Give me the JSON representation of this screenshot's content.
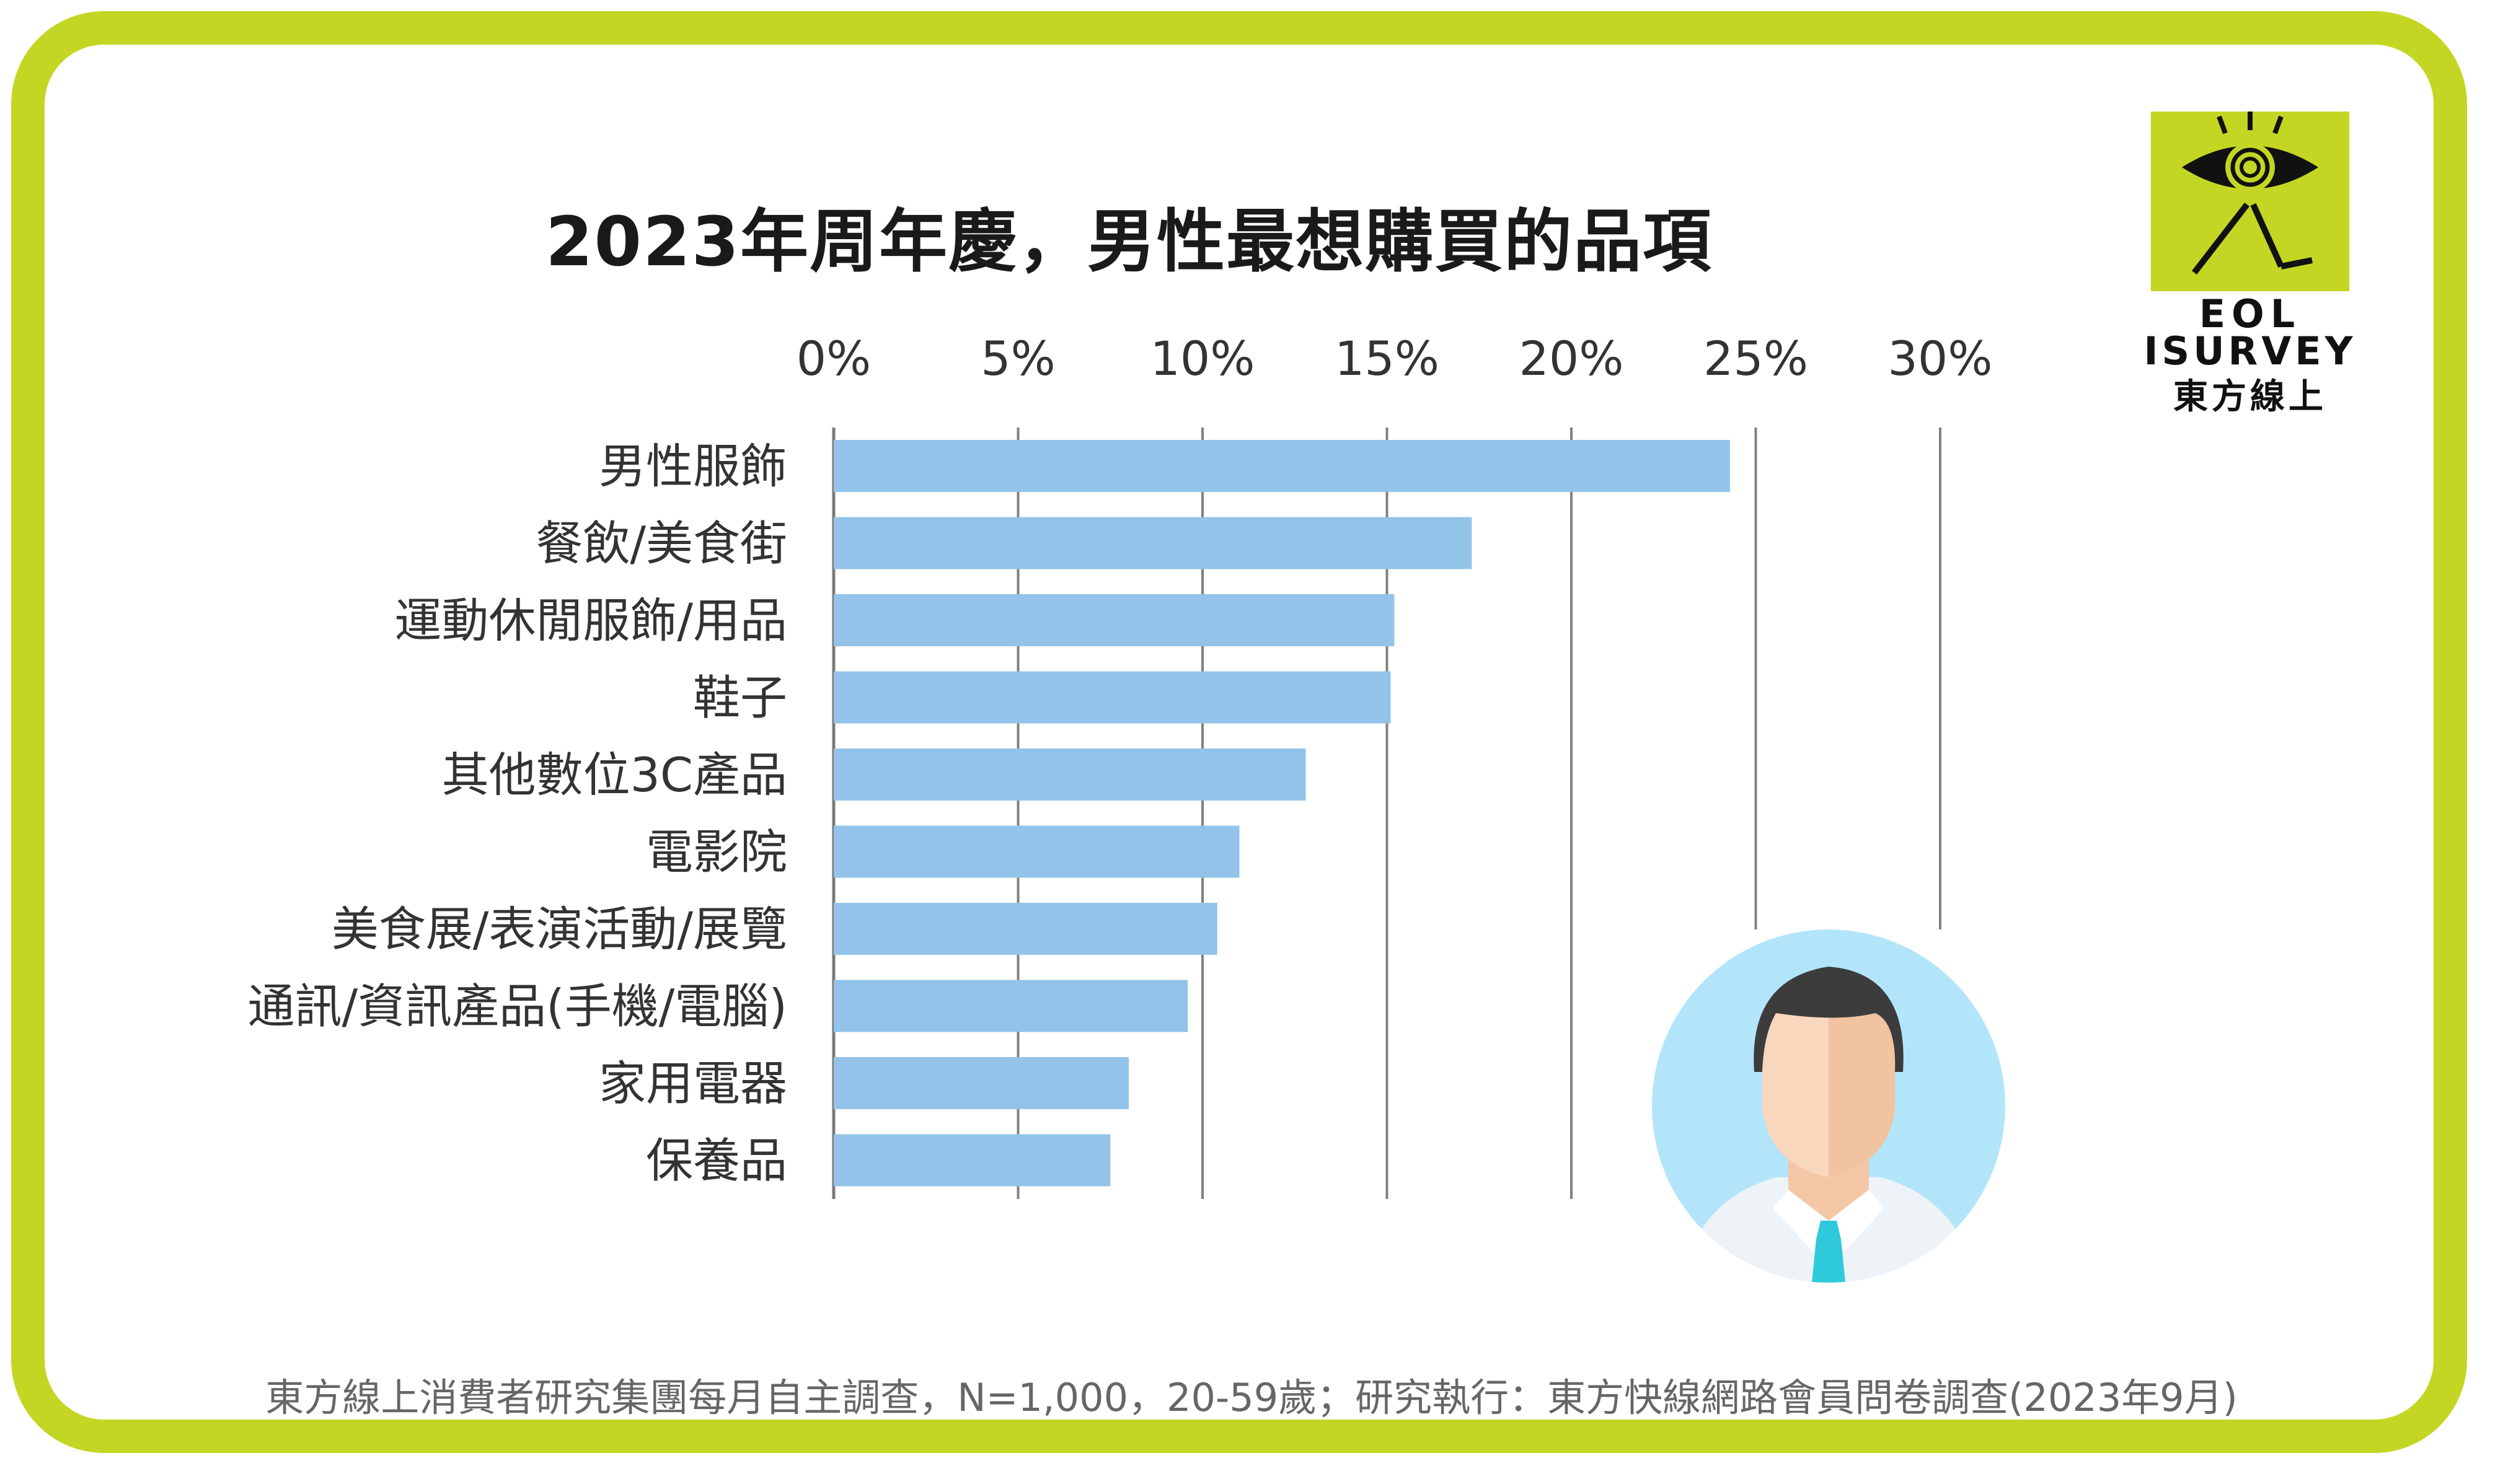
{
  "title": "2023年周年慶，男性最想購買的品項",
  "logo": {
    "line1": "EOL",
    "line2": "ISURVEY",
    "line3": "東方線上"
  },
  "footnote": "東方線上消費者研究集團每月自主調查，N=1,000，20-59歲；研究執行：東方快線網路會員問卷調查(2023年9月)",
  "colors": {
    "bar": "#93c3e8",
    "frame": "#c3d623",
    "grid": "#808080",
    "avatar_bg": "#b3e5fa",
    "tie": "#2ec9da"
  },
  "chart_data": {
    "type": "bar",
    "orientation": "horizontal",
    "title": "2023年周年慶，男性最想購買的品項",
    "categories": [
      "男性服飾",
      "餐飲/美食街",
      "運動休閒服飾/用品",
      "鞋子",
      "其他數位3C產品",
      "電影院",
      "美食展/表演活動/展覽",
      "通訊/資訊產品(手機/電腦)",
      "家用電器",
      "保養品"
    ],
    "values": [
      24.3,
      17.3,
      15.2,
      15.1,
      12.8,
      11.0,
      10.4,
      9.6,
      8.0,
      7.5
    ],
    "xlim": [
      0,
      30
    ],
    "ticks": [
      "0%",
      "5%",
      "10%",
      "15%",
      "20%",
      "25%",
      "30%"
    ],
    "tick_values": [
      0,
      5,
      10,
      15,
      20,
      25,
      30
    ],
    "axis_position": "top",
    "grid": true
  }
}
